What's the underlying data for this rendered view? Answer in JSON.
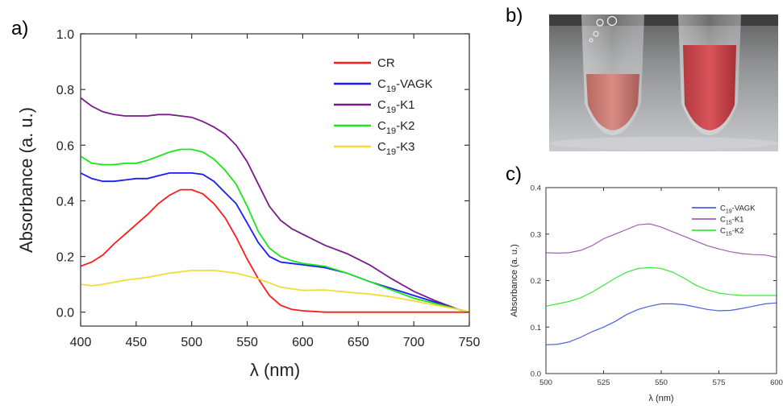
{
  "panel_labels": {
    "a": "a)",
    "b": "b)",
    "c": "c)"
  },
  "chart_data": [
    {
      "type": "line",
      "panel": "a)",
      "xlabel": "λ (nm)",
      "ylabel": "Absorbance (a. u.)",
      "xlim": [
        400,
        750
      ],
      "ylim": [
        -0.05,
        1.0
      ],
      "xticks": [
        400,
        450,
        500,
        550,
        600,
        650,
        700,
        750
      ],
      "yticks": [
        0.0,
        0.2,
        0.4,
        0.6,
        0.8,
        1.0
      ],
      "grid": false,
      "legend_position": "top-right",
      "series": [
        {
          "name": "CR",
          "name_base": "CR",
          "name_sub": "",
          "name_tail": "",
          "color": "#ff1a1a",
          "x": [
            400,
            410,
            420,
            430,
            440,
            450,
            460,
            470,
            480,
            490,
            500,
            510,
            520,
            530,
            540,
            550,
            560,
            570,
            580,
            590,
            600,
            620,
            650,
            700,
            740,
            750
          ],
          "y": [
            0.165,
            0.18,
            0.205,
            0.245,
            0.28,
            0.315,
            0.35,
            0.39,
            0.42,
            0.44,
            0.44,
            0.425,
            0.39,
            0.34,
            0.27,
            0.19,
            0.12,
            0.06,
            0.025,
            0.01,
            0.005,
            0.0,
            0.0,
            0.0,
            0.0,
            0.0
          ]
        },
        {
          "name": "C19-VAGK",
          "name_base": "C",
          "name_sub": "19",
          "name_tail": "-VAGK",
          "color": "#1a1aff",
          "x": [
            400,
            410,
            420,
            430,
            440,
            450,
            460,
            470,
            480,
            490,
            500,
            510,
            520,
            530,
            540,
            550,
            560,
            570,
            580,
            590,
            600,
            620,
            640,
            660,
            680,
            700,
            720,
            740,
            750
          ],
          "y": [
            0.5,
            0.48,
            0.47,
            0.47,
            0.475,
            0.48,
            0.48,
            0.49,
            0.5,
            0.5,
            0.5,
            0.495,
            0.47,
            0.43,
            0.39,
            0.32,
            0.25,
            0.2,
            0.18,
            0.175,
            0.17,
            0.16,
            0.14,
            0.11,
            0.085,
            0.06,
            0.035,
            0.01,
            0.0
          ]
        },
        {
          "name": "C19-K1",
          "name_base": "C",
          "name_sub": "19",
          "name_tail": "-K1",
          "color": "#7a1a8c",
          "x": [
            400,
            410,
            420,
            430,
            440,
            450,
            460,
            470,
            480,
            490,
            500,
            510,
            520,
            530,
            540,
            550,
            560,
            570,
            580,
            590,
            600,
            620,
            640,
            660,
            680,
            700,
            720,
            740,
            750
          ],
          "y": [
            0.77,
            0.74,
            0.72,
            0.71,
            0.705,
            0.705,
            0.705,
            0.71,
            0.71,
            0.705,
            0.7,
            0.685,
            0.665,
            0.64,
            0.6,
            0.54,
            0.46,
            0.38,
            0.33,
            0.3,
            0.28,
            0.24,
            0.21,
            0.17,
            0.12,
            0.075,
            0.04,
            0.01,
            0.0
          ]
        },
        {
          "name": "C19-K2",
          "name_base": "C",
          "name_sub": "19",
          "name_tail": "-K2",
          "color": "#1ae61a",
          "x": [
            400,
            410,
            420,
            430,
            440,
            450,
            460,
            470,
            480,
            490,
            500,
            510,
            520,
            530,
            540,
            550,
            560,
            570,
            580,
            590,
            600,
            620,
            640,
            660,
            680,
            700,
            720,
            740,
            750
          ],
          "y": [
            0.56,
            0.535,
            0.53,
            0.53,
            0.535,
            0.535,
            0.545,
            0.56,
            0.575,
            0.585,
            0.585,
            0.575,
            0.55,
            0.51,
            0.46,
            0.38,
            0.29,
            0.23,
            0.2,
            0.185,
            0.175,
            0.165,
            0.14,
            0.11,
            0.08,
            0.05,
            0.03,
            0.01,
            0.0
          ]
        },
        {
          "name": "C19-K3",
          "name_base": "C",
          "name_sub": "19",
          "name_tail": "-K3",
          "color": "#f2dc3a",
          "x": [
            400,
            410,
            420,
            440,
            460,
            480,
            500,
            520,
            540,
            560,
            580,
            600,
            620,
            640,
            660,
            680,
            700,
            720,
            740,
            750
          ],
          "y": [
            0.1,
            0.095,
            0.1,
            0.115,
            0.125,
            0.14,
            0.15,
            0.15,
            0.14,
            0.12,
            0.09,
            0.078,
            0.08,
            0.072,
            0.065,
            0.055,
            0.04,
            0.025,
            0.01,
            0.0
          ]
        }
      ]
    },
    {
      "type": "line",
      "panel": "c)",
      "xlabel": "λ (nm)",
      "ylabel": "Absorbance (a. u.)",
      "xlim": [
        500,
        600
      ],
      "ylim": [
        0.0,
        0.4
      ],
      "xticks": [
        500,
        525,
        550,
        575,
        600
      ],
      "yticks": [
        0.0,
        0.1,
        0.2,
        0.3,
        0.4
      ],
      "grid": false,
      "legend_position": "top-right",
      "series": [
        {
          "name": "C19-VAGK",
          "name_base": "C",
          "name_sub": "19",
          "name_tail": "-VAGK",
          "color": "#4a5ee8",
          "x": [
            500,
            505,
            510,
            515,
            520,
            525,
            530,
            535,
            540,
            545,
            550,
            555,
            560,
            565,
            570,
            575,
            580,
            585,
            590,
            595,
            600
          ],
          "y": [
            0.062,
            0.063,
            0.068,
            0.078,
            0.09,
            0.1,
            0.112,
            0.127,
            0.138,
            0.145,
            0.15,
            0.15,
            0.148,
            0.143,
            0.138,
            0.135,
            0.136,
            0.14,
            0.145,
            0.15,
            0.152
          ]
        },
        {
          "name": "C15-K1",
          "name_base": "C",
          "name_sub": "15",
          "name_tail": "-K1",
          "color": "#a060b0",
          "x": [
            500,
            505,
            510,
            515,
            520,
            525,
            530,
            535,
            540,
            545,
            550,
            555,
            560,
            565,
            570,
            575,
            580,
            585,
            590,
            595,
            600
          ],
          "y": [
            0.26,
            0.259,
            0.26,
            0.265,
            0.275,
            0.29,
            0.3,
            0.31,
            0.32,
            0.322,
            0.315,
            0.305,
            0.295,
            0.285,
            0.275,
            0.268,
            0.262,
            0.258,
            0.256,
            0.255,
            0.25
          ]
        },
        {
          "name": "C15-K2",
          "name_base": "C",
          "name_sub": "15",
          "name_tail": "-K2",
          "color": "#3ae83a",
          "x": [
            500,
            505,
            510,
            515,
            520,
            525,
            530,
            535,
            540,
            545,
            550,
            555,
            560,
            565,
            570,
            575,
            580,
            585,
            590,
            595,
            600
          ],
          "y": [
            0.145,
            0.15,
            0.155,
            0.163,
            0.175,
            0.19,
            0.205,
            0.218,
            0.226,
            0.228,
            0.226,
            0.218,
            0.205,
            0.19,
            0.18,
            0.173,
            0.17,
            0.168,
            0.168,
            0.168,
            0.168
          ]
        }
      ]
    }
  ]
}
